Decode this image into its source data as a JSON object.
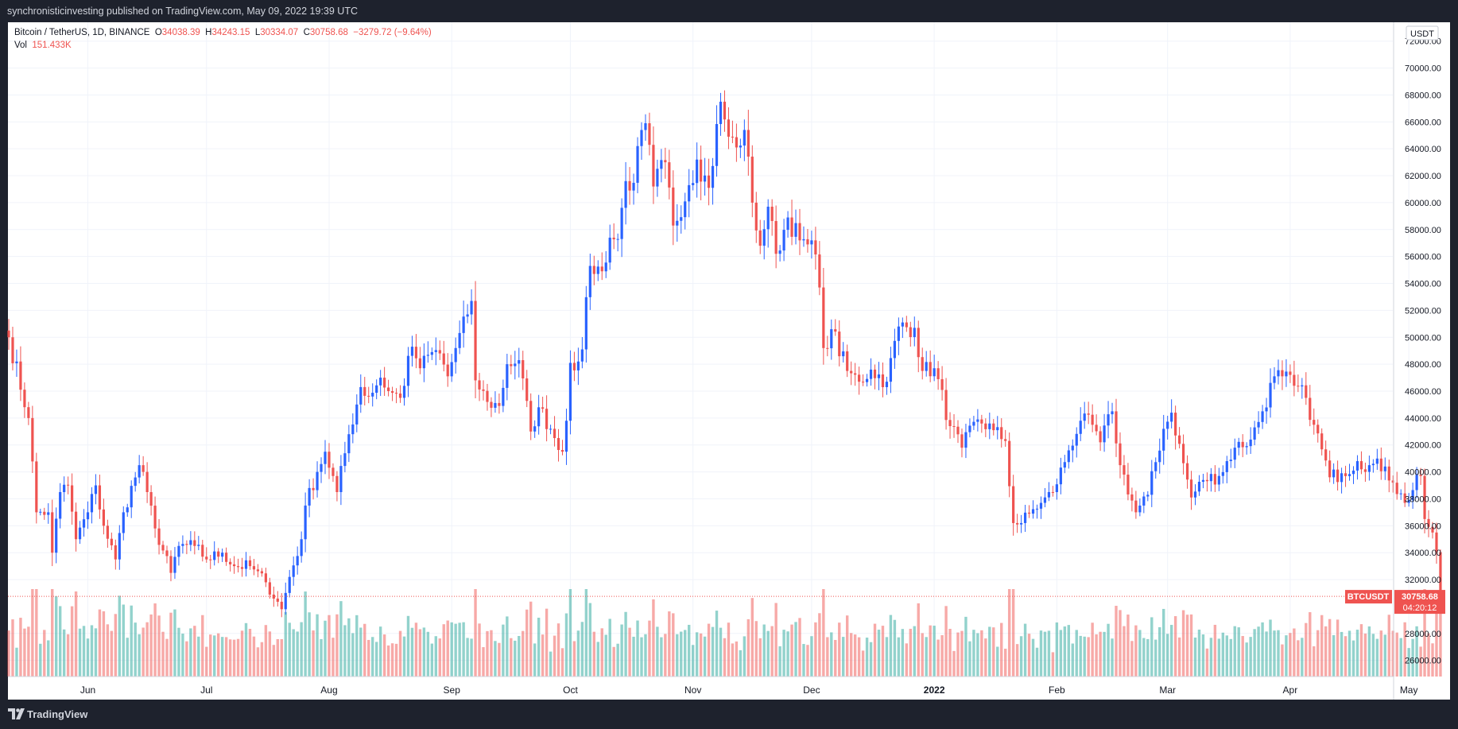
{
  "header": {
    "publish_line": "synchronisticinvesting published on TradingView.com, May 09, 2022 19:39 UTC"
  },
  "legend": {
    "symbol": "Bitcoin / TetherUS, 1D, BINANCE",
    "o_label": "O",
    "o_value": "34038.39",
    "h_label": "H",
    "h_value": "34243.15",
    "l_label": "L",
    "l_value": "30334.07",
    "c_label": "C",
    "c_value": "30758.68",
    "change": "−3279.72 (−9.64%)",
    "vol_label": "Vol",
    "vol_value": "151.433K"
  },
  "footer": {
    "brand": "TradingView"
  },
  "colors": {
    "up": "#2962ff",
    "down": "#ef5350",
    "vol_up": "#26a69a",
    "vol_down": "#ef5350"
  },
  "chart_data": {
    "type": "candlestick",
    "symbol": "BTCUSDT",
    "currency_label": "USDT",
    "y_ticks": [
      "72000.00",
      "70000.00",
      "68000.00",
      "66000.00",
      "64000.00",
      "62000.00",
      "60000.00",
      "58000.00",
      "56000.00",
      "54000.00",
      "52000.00",
      "50000.00",
      "48000.00",
      "46000.00",
      "44000.00",
      "42000.00",
      "40000.00",
      "38000.00",
      "36000.00",
      "34000.00",
      "32000.00",
      "28000.00",
      "26000.00"
    ],
    "ylim": [
      24800,
      73400
    ],
    "x_ticks": [
      {
        "label": "Jun",
        "date": "2021-06-01"
      },
      {
        "label": "Jul",
        "date": "2021-07-01"
      },
      {
        "label": "Aug",
        "date": "2021-08-01"
      },
      {
        "label": "Sep",
        "date": "2021-09-01"
      },
      {
        "label": "Oct",
        "date": "2021-10-01"
      },
      {
        "label": "Nov",
        "date": "2021-11-01"
      },
      {
        "label": "Dec",
        "date": "2021-12-01"
      },
      {
        "label": "2022",
        "date": "2022-01-01"
      },
      {
        "label": "Feb",
        "date": "2022-02-01"
      },
      {
        "label": "Mar",
        "date": "2022-03-01"
      },
      {
        "label": "Apr",
        "date": "2022-04-01"
      },
      {
        "label": "May",
        "date": "2022-05-01"
      }
    ],
    "first_date": "2021-05-12",
    "last_price": "30758.68",
    "last_price_label": "BTCUSDT",
    "countdown": "04:20:12",
    "anchors": [
      [
        "2021-05-12",
        50000
      ],
      [
        "2021-05-17",
        44000
      ],
      [
        "2021-05-19",
        37000
      ],
      [
        "2021-05-22",
        37000
      ],
      [
        "2021-05-23",
        34000
      ],
      [
        "2021-05-25",
        38500
      ],
      [
        "2021-05-27",
        39000
      ],
      [
        "2021-05-29",
        35000
      ],
      [
        "2021-06-01",
        37000
      ],
      [
        "2021-06-03",
        39000
      ],
      [
        "2021-06-05",
        36000
      ],
      [
        "2021-06-08",
        33500
      ],
      [
        "2021-06-10",
        37000
      ],
      [
        "2021-06-14",
        40500
      ],
      [
        "2021-06-16",
        38500
      ],
      [
        "2021-06-18",
        35800
      ],
      [
        "2021-06-22",
        32500
      ],
      [
        "2021-06-24",
        34500
      ],
      [
        "2021-06-28",
        34500
      ],
      [
        "2021-07-01",
        33500
      ],
      [
        "2021-07-05",
        34000
      ],
      [
        "2021-07-08",
        33000
      ],
      [
        "2021-07-12",
        33000
      ],
      [
        "2021-07-16",
        31800
      ],
      [
        "2021-07-20",
        29800
      ],
      [
        "2021-07-22",
        32200
      ],
      [
        "2021-07-25",
        35000
      ],
      [
        "2021-07-26",
        37500
      ],
      [
        "2021-07-29",
        40000
      ],
      [
        "2021-07-31",
        41500
      ],
      [
        "2021-08-03",
        38500
      ],
      [
        "2021-08-06",
        42800
      ],
      [
        "2021-08-09",
        46300
      ],
      [
        "2021-08-11",
        45600
      ],
      [
        "2021-08-14",
        47000
      ],
      [
        "2021-08-16",
        46000
      ],
      [
        "2021-08-19",
        45500
      ],
      [
        "2021-08-22",
        49300
      ],
      [
        "2021-08-24",
        47700
      ],
      [
        "2021-08-27",
        48900
      ],
      [
        "2021-08-29",
        48800
      ],
      [
        "2021-08-31",
        47100
      ],
      [
        "2021-09-02",
        49200
      ],
      [
        "2021-09-05",
        51700
      ],
      [
        "2021-09-06",
        52700
      ],
      [
        "2021-09-07",
        46800
      ],
      [
        "2021-09-10",
        45200
      ],
      [
        "2021-09-13",
        44900
      ],
      [
        "2021-09-15",
        48000
      ],
      [
        "2021-09-18",
        48300
      ],
      [
        "2021-09-21",
        43000
      ],
      [
        "2021-09-23",
        44800
      ],
      [
        "2021-09-26",
        43200
      ],
      [
        "2021-09-29",
        41500
      ],
      [
        "2021-09-30",
        43800
      ],
      [
        "2021-10-01",
        48100
      ],
      [
        "2021-10-03",
        48200
      ],
      [
        "2021-10-04",
        49100
      ],
      [
        "2021-10-06",
        55300
      ],
      [
        "2021-10-09",
        54900
      ],
      [
        "2021-10-11",
        57400
      ],
      [
        "2021-10-13",
        57300
      ],
      [
        "2021-10-15",
        61600
      ],
      [
        "2021-10-16",
        60900
      ],
      [
        "2021-10-20",
        65900
      ],
      [
        "2021-10-22",
        61200
      ],
      [
        "2021-10-25",
        63000
      ],
      [
        "2021-10-27",
        58300
      ],
      [
        "2021-10-31",
        61300
      ],
      [
        "2021-11-02",
        63200
      ],
      [
        "2021-11-05",
        61100
      ],
      [
        "2021-11-08",
        67500
      ],
      [
        "2021-11-10",
        64900
      ],
      [
        "2021-11-12",
        64100
      ],
      [
        "2021-11-14",
        65400
      ],
      [
        "2021-11-16",
        60000
      ],
      [
        "2021-11-18",
        56800
      ],
      [
        "2021-11-20",
        59700
      ],
      [
        "2021-11-22",
        56200
      ],
      [
        "2021-11-25",
        58900
      ],
      [
        "2021-11-28",
        57200
      ],
      [
        "2021-11-30",
        56900
      ],
      [
        "2021-12-01",
        57200
      ],
      [
        "2021-12-03",
        53700
      ],
      [
        "2021-12-04",
        49200
      ],
      [
        "2021-12-06",
        50600
      ],
      [
        "2021-12-10",
        47500
      ],
      [
        "2021-12-13",
        46700
      ],
      [
        "2021-12-16",
        47600
      ],
      [
        "2021-12-20",
        46700
      ],
      [
        "2021-12-23",
        50800
      ],
      [
        "2021-12-27",
        50700
      ],
      [
        "2021-12-29",
        47500
      ],
      [
        "2022-01-01",
        47700
      ],
      [
        "2022-01-05",
        43400
      ],
      [
        "2022-01-08",
        41800
      ],
      [
        "2022-01-12",
        43900
      ],
      [
        "2022-01-16",
        43100
      ],
      [
        "2022-01-19",
        42300
      ],
      [
        "2022-01-21",
        36200
      ],
      [
        "2022-01-23",
        36200
      ],
      [
        "2022-01-25",
        36900
      ],
      [
        "2022-01-28",
        37700
      ],
      [
        "2022-01-31",
        38500
      ],
      [
        "2022-02-04",
        41600
      ],
      [
        "2022-02-07",
        43800
      ],
      [
        "2022-02-10",
        43500
      ],
      [
        "2022-02-12",
        42200
      ],
      [
        "2022-02-15",
        44500
      ],
      [
        "2022-02-17",
        40500
      ],
      [
        "2022-02-21",
        37000
      ],
      [
        "2022-02-24",
        38300
      ],
      [
        "2022-02-28",
        43200
      ],
      [
        "2022-03-02",
        44400
      ],
      [
        "2022-03-07",
        38100
      ],
      [
        "2022-03-10",
        39400
      ],
      [
        "2022-03-14",
        39700
      ],
      [
        "2022-03-18",
        41800
      ],
      [
        "2022-03-22",
        42400
      ],
      [
        "2022-03-25",
        44500
      ],
      [
        "2022-03-28",
        47100
      ],
      [
        "2022-03-30",
        47100
      ],
      [
        "2022-04-02",
        46400
      ],
      [
        "2022-04-05",
        45500
      ],
      [
        "2022-04-07",
        43500
      ],
      [
        "2022-04-11",
        39600
      ],
      [
        "2022-04-14",
        39900
      ],
      [
        "2022-04-18",
        40800
      ],
      [
        "2022-04-21",
        40500
      ],
      [
        "2022-04-25",
        40400
      ],
      [
        "2022-04-27",
        39200
      ],
      [
        "2022-04-30",
        37700
      ],
      [
        "2022-05-04",
        39700
      ],
      [
        "2022-05-05",
        36500
      ],
      [
        "2022-05-07",
        35500
      ],
      [
        "2022-05-08",
        34038
      ],
      [
        "2022-05-09",
        30758.68
      ]
    ]
  }
}
